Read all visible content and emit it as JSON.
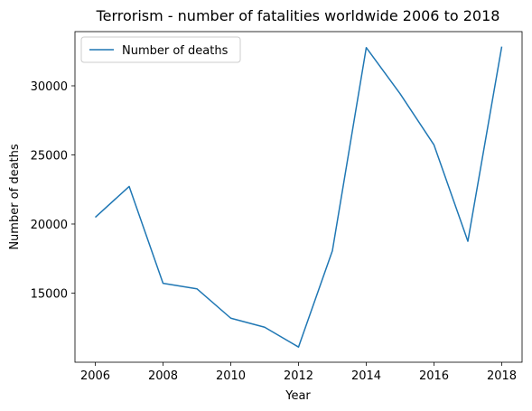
{
  "chart_data": {
    "type": "line",
    "title": "Terrorism - number of fatalities worldwide 2006 to 2018",
    "xlabel": "Year",
    "ylabel": "Number of deaths",
    "x": [
      2006,
      2007,
      2008,
      2009,
      2010,
      2011,
      2012,
      2013,
      2014,
      2015,
      2016,
      2017,
      2018
    ],
    "series": [
      {
        "name": "Number of deaths",
        "color": "#1f77b4",
        "values": [
          20487,
          22719,
          15708,
          15310,
          13186,
          12533,
          11098,
          18066,
          32763,
          29424,
          25722,
          18753,
          32836
        ]
      }
    ],
    "xlim": [
      2005.4,
      2018.6
    ],
    "ylim": [
      9999,
      33921
    ],
    "xticks": [
      2006,
      2008,
      2010,
      2012,
      2014,
      2016,
      2018
    ],
    "yticks": [
      15000,
      20000,
      25000,
      30000
    ],
    "grid": false,
    "legend": "upper-left"
  }
}
